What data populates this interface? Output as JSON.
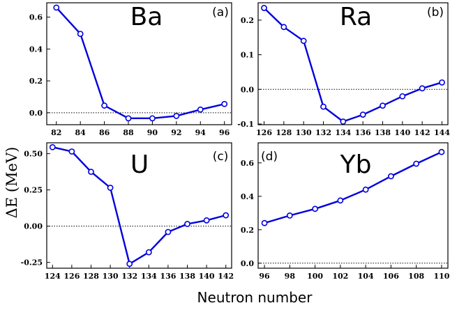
{
  "figure": {
    "ylabel": "ΔE (MeV)",
    "xlabel": "Neutron number"
  },
  "chart_data": [
    {
      "type": "line",
      "title": "Ba",
      "panel_label": "(a)",
      "x": [
        82,
        84,
        86,
        88,
        90,
        92,
        94,
        96
      ],
      "y": [
        0.66,
        0.495,
        0.045,
        -0.035,
        -0.035,
        -0.02,
        0.02,
        0.055
      ],
      "xticks": [
        82,
        84,
        86,
        88,
        90,
        92,
        94,
        96
      ],
      "yticks": [
        "0.0",
        "0.2",
        "0.4",
        "0.6"
      ],
      "ytick_values": [
        0.0,
        0.2,
        0.4,
        0.6
      ],
      "xlim": [
        81.2,
        96.6
      ],
      "ylim": [
        -0.075,
        0.69
      ],
      "reference_line": 0,
      "color": "#0000dd"
    },
    {
      "type": "line",
      "title": "Ra",
      "panel_label": "(b)",
      "x": [
        126,
        128,
        130,
        132,
        134,
        136,
        138,
        140,
        142,
        144
      ],
      "y": [
        0.235,
        0.18,
        0.14,
        -0.05,
        -0.093,
        -0.073,
        -0.047,
        -0.02,
        0.003,
        0.02
      ],
      "xticks": [
        126,
        128,
        130,
        132,
        134,
        136,
        138,
        140,
        142,
        144
      ],
      "yticks": [
        "-0.1",
        "0.0",
        "0.1",
        "0.2"
      ],
      "ytick_values": [
        -0.1,
        0.0,
        0.1,
        0.2
      ],
      "xlim": [
        125.4,
        144.6
      ],
      "ylim": [
        -0.102,
        0.25
      ],
      "reference_line": 0,
      "color": "#0000dd"
    },
    {
      "type": "line",
      "title": "U",
      "panel_label": "(c)",
      "x": [
        124,
        126,
        128,
        130,
        132,
        134,
        136,
        138,
        140,
        142
      ],
      "y": [
        0.545,
        0.515,
        0.375,
        0.265,
        -0.26,
        -0.18,
        -0.04,
        0.015,
        0.04,
        0.075
      ],
      "xticks": [
        124,
        126,
        128,
        130,
        132,
        134,
        136,
        138,
        140,
        142
      ],
      "yticks": [
        "-0.25",
        "0.00",
        "0.25",
        "0.50"
      ],
      "ytick_values": [
        -0.25,
        0.0,
        0.25,
        0.5
      ],
      "xlim": [
        123.4,
        142.6
      ],
      "ylim": [
        -0.29,
        0.575
      ],
      "reference_line": 0,
      "color": "#0000dd"
    },
    {
      "type": "line",
      "title": "Yb",
      "panel_label": "(d)",
      "x": [
        96,
        98,
        100,
        102,
        104,
        106,
        108,
        110
      ],
      "y": [
        0.24,
        0.285,
        0.325,
        0.375,
        0.44,
        0.52,
        0.595,
        0.665
      ],
      "xticks": [
        96,
        98,
        100,
        102,
        104,
        106,
        108,
        110
      ],
      "yticks": [
        "0.0",
        "0.2",
        "0.4",
        "0.6"
      ],
      "ytick_values": [
        0.0,
        0.2,
        0.4,
        0.6
      ],
      "xlim": [
        95.5,
        110.5
      ],
      "ylim": [
        -0.03,
        0.72
      ],
      "reference_line": 0,
      "color": "#0000dd"
    }
  ]
}
